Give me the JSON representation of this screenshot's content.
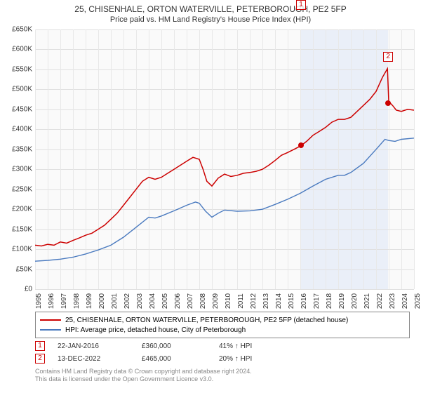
{
  "title_line1": "25, CHISENHALE, ORTON WATERVILLE, PETERBOROUGH, PE2 5FP",
  "title_line2": "Price paid vs. HM Land Registry's House Price Index (HPI)",
  "chart": {
    "type": "line",
    "background_color": "#fafafa",
    "grid_color": "#e0e0e0",
    "text_color": "#333333",
    "x_years": [
      1995,
      1996,
      1997,
      1998,
      1999,
      2000,
      2001,
      2002,
      2003,
      2004,
      2005,
      2006,
      2007,
      2008,
      2009,
      2010,
      2011,
      2012,
      2013,
      2014,
      2015,
      2016,
      2017,
      2018,
      2019,
      2020,
      2021,
      2022,
      2023,
      2024,
      2025
    ],
    "xlim": [
      1995,
      2025
    ],
    "ylim": [
      0,
      650
    ],
    "ytick_step": 50,
    "y_prefix": "£",
    "y_suffix": "K",
    "highlight_band_years": [
      2016.06,
      2022.95
    ],
    "highlight_band_color": "#dce6f5",
    "series": [
      {
        "label": "25, CHISENHALE, ORTON WATERVILLE, PETERBOROUGH, PE2 5FP (detached house)",
        "color": "#cc0000",
        "line_width": 1.5,
        "points": [
          [
            1995,
            110
          ],
          [
            1995.5,
            108
          ],
          [
            1996,
            112
          ],
          [
            1996.5,
            110
          ],
          [
            1997,
            118
          ],
          [
            1997.5,
            115
          ],
          [
            1998,
            122
          ],
          [
            1998.5,
            128
          ],
          [
            1999,
            135
          ],
          [
            1999.5,
            140
          ],
          [
            2000,
            150
          ],
          [
            2000.5,
            160
          ],
          [
            2001,
            175
          ],
          [
            2001.5,
            190
          ],
          [
            2002,
            210
          ],
          [
            2002.5,
            230
          ],
          [
            2003,
            250
          ],
          [
            2003.5,
            270
          ],
          [
            2004,
            280
          ],
          [
            2004.5,
            275
          ],
          [
            2005,
            280
          ],
          [
            2005.5,
            290
          ],
          [
            2006,
            300
          ],
          [
            2006.5,
            310
          ],
          [
            2007,
            320
          ],
          [
            2007.5,
            330
          ],
          [
            2008,
            325
          ],
          [
            2008.3,
            300
          ],
          [
            2008.6,
            270
          ],
          [
            2009,
            258
          ],
          [
            2009.5,
            278
          ],
          [
            2010,
            288
          ],
          [
            2010.5,
            282
          ],
          [
            2011,
            285
          ],
          [
            2011.5,
            290
          ],
          [
            2012,
            292
          ],
          [
            2012.5,
            295
          ],
          [
            2013,
            300
          ],
          [
            2013.5,
            310
          ],
          [
            2014,
            322
          ],
          [
            2014.5,
            335
          ],
          [
            2015,
            342
          ],
          [
            2015.5,
            350
          ],
          [
            2016,
            358
          ],
          [
            2016.5,
            370
          ],
          [
            2017,
            385
          ],
          [
            2017.5,
            395
          ],
          [
            2018,
            405
          ],
          [
            2018.5,
            418
          ],
          [
            2019,
            425
          ],
          [
            2019.5,
            425
          ],
          [
            2020,
            430
          ],
          [
            2020.5,
            445
          ],
          [
            2021,
            460
          ],
          [
            2021.5,
            475
          ],
          [
            2022,
            495
          ],
          [
            2022.5,
            530
          ],
          [
            2022.9,
            552
          ],
          [
            2023,
            470
          ],
          [
            2023.3,
            460
          ],
          [
            2023.6,
            448
          ],
          [
            2024,
            445
          ],
          [
            2024.5,
            450
          ],
          [
            2025,
            448
          ]
        ]
      },
      {
        "label": "HPI: Average price, detached house, City of Peterborough",
        "color": "#4a7abf",
        "line_width": 1.4,
        "points": [
          [
            1995,
            70
          ],
          [
            1996,
            72
          ],
          [
            1997,
            75
          ],
          [
            1998,
            80
          ],
          [
            1999,
            88
          ],
          [
            2000,
            98
          ],
          [
            2001,
            110
          ],
          [
            2002,
            130
          ],
          [
            2003,
            155
          ],
          [
            2004,
            180
          ],
          [
            2004.5,
            178
          ],
          [
            2005,
            183
          ],
          [
            2006,
            196
          ],
          [
            2007,
            210
          ],
          [
            2007.7,
            218
          ],
          [
            2008,
            215
          ],
          [
            2008.5,
            195
          ],
          [
            2009,
            180
          ],
          [
            2009.5,
            190
          ],
          [
            2010,
            198
          ],
          [
            2011,
            195
          ],
          [
            2012,
            196
          ],
          [
            2013,
            200
          ],
          [
            2014,
            212
          ],
          [
            2015,
            225
          ],
          [
            2016,
            240
          ],
          [
            2017,
            258
          ],
          [
            2018,
            275
          ],
          [
            2019,
            285
          ],
          [
            2019.5,
            285
          ],
          [
            2020,
            292
          ],
          [
            2021,
            315
          ],
          [
            2022,
            350
          ],
          [
            2022.7,
            375
          ],
          [
            2023,
            372
          ],
          [
            2023.5,
            370
          ],
          [
            2024,
            375
          ],
          [
            2025,
            378
          ]
        ]
      }
    ],
    "event_markers": [
      {
        "n": "1",
        "year": 2016.06,
        "value": 360,
        "box_offset_y": -0.95
      },
      {
        "n": "2",
        "year": 2022.95,
        "value": 465,
        "box_at_year": 2022.95,
        "box_at_value": 553,
        "box_offset_y": -0.03
      }
    ]
  },
  "legend": {
    "rows": 2
  },
  "events": [
    {
      "n": "1",
      "date": "22-JAN-2016",
      "price": "£360,000",
      "delta": "41% ↑ HPI"
    },
    {
      "n": "2",
      "date": "13-DEC-2022",
      "price": "£465,000",
      "delta": "20% ↑ HPI"
    }
  ],
  "credits": {
    "line1": "Contains HM Land Registry data © Crown copyright and database right 2024.",
    "line2": "This data is licensed under the Open Government Licence v3.0."
  }
}
